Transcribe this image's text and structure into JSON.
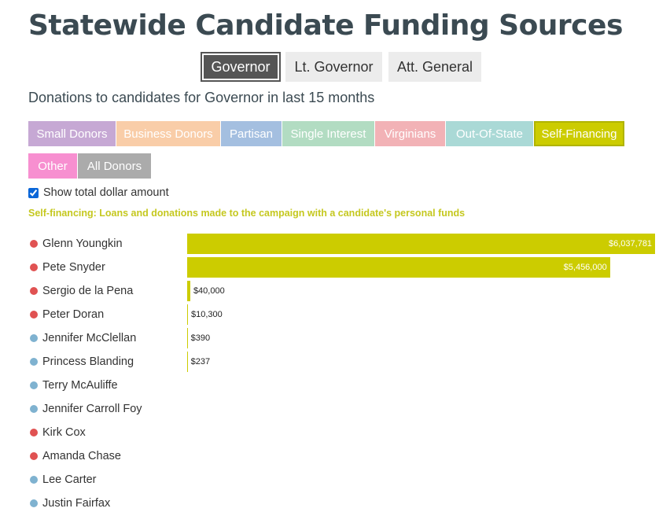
{
  "page_title": "Statewide Candidate Funding Sources",
  "office_tabs": [
    {
      "label": "Governor",
      "active": true
    },
    {
      "label": "Lt. Governor",
      "active": false
    },
    {
      "label": "Att. General",
      "active": false
    }
  ],
  "subtitle": "Donations to candidates for Governor in last 15 months",
  "categories": [
    {
      "label": "Small Donors",
      "color": "#c6a8d4",
      "active": false
    },
    {
      "label": "Business Donors",
      "color": "#f9cda8",
      "active": false
    },
    {
      "label": "Partisan",
      "color": "#a4bfe0",
      "active": false
    },
    {
      "label": "Single Interest",
      "color": "#b2dcc2",
      "active": false
    },
    {
      "label": "Virginians",
      "color": "#f2b2b6",
      "active": false
    },
    {
      "label": "Out-Of-State",
      "color": "#aad9d6",
      "active": false
    },
    {
      "label": "Self-Financing",
      "color": "#cccc00",
      "active": true
    },
    {
      "label": "Other",
      "color": "#f78fd0",
      "active": false
    },
    {
      "label": "All Donors",
      "color": "#ababab",
      "active": false
    }
  ],
  "show_total": {
    "label": "Show total dollar amount",
    "checked": true
  },
  "note": "Self-financing: Loans and donations made to the campaign with a candidate's personal funds",
  "party_colors": {
    "R": "#e05252",
    "D": "#7fb2d0"
  },
  "bar_color": "#cccc00",
  "chart_data": {
    "type": "bar",
    "orientation": "horizontal",
    "categories": [
      "Glenn Youngkin",
      "Pete Snyder",
      "Sergio de la Pena",
      "Peter Doran",
      "Jennifer McClellan",
      "Princess Blanding",
      "Terry McAuliffe",
      "Jennifer Carroll Foy",
      "Kirk Cox",
      "Amanda Chase",
      "Lee Carter",
      "Justin Fairfax"
    ],
    "party": [
      "R",
      "R",
      "R",
      "R",
      "D",
      "D",
      "D",
      "D",
      "R",
      "R",
      "D",
      "D"
    ],
    "values": [
      6037781,
      5456000,
      40000,
      10300,
      390,
      237,
      null,
      null,
      null,
      null,
      null,
      null
    ],
    "value_labels": [
      "$6,037,781",
      "$5,456,000",
      "$40,000",
      "$10,300",
      "$390",
      "$237",
      "",
      "",
      "",
      "",
      "",
      ""
    ],
    "title": "",
    "xlabel": "",
    "ylabel": "",
    "xlim": [
      0,
      6037781
    ],
    "grid": false,
    "legend": "none"
  }
}
